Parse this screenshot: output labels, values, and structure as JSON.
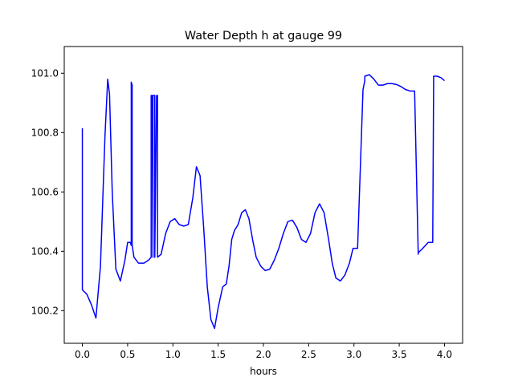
{
  "chart_data": {
    "type": "line",
    "title": "Water Depth h at gauge 99",
    "xlabel": "hours",
    "ylabel": "",
    "xlim": [
      -0.2,
      4.2
    ],
    "ylim": [
      100.09,
      101.09
    ],
    "xticks": [
      0.0,
      0.5,
      1.0,
      1.5,
      2.0,
      2.5,
      3.0,
      3.5,
      4.0
    ],
    "xtick_labels": [
      "0.0",
      "0.5",
      "1.0",
      "1.5",
      "2.0",
      "2.5",
      "3.0",
      "3.5",
      "4.0"
    ],
    "yticks": [
      100.2,
      100.4,
      100.6,
      100.8,
      101.0
    ],
    "ytick_labels": [
      "100.2",
      "100.4",
      "100.6",
      "100.8",
      "101.0"
    ],
    "grid": false,
    "series": [
      {
        "color": "#0000ff",
        "x": [
          0.0,
          0.0,
          0.05,
          0.1,
          0.15,
          0.2,
          0.25,
          0.28,
          0.3,
          0.33,
          0.37,
          0.42,
          0.47,
          0.5,
          0.53,
          0.54,
          0.54,
          0.55,
          0.55,
          0.57,
          0.62,
          0.68,
          0.73,
          0.76,
          0.76,
          0.77,
          0.78,
          0.78,
          0.8,
          0.8,
          0.82,
          0.83,
          0.83,
          0.87,
          0.92,
          0.97,
          1.02,
          1.07,
          1.12,
          1.17,
          1.22,
          1.26,
          1.3,
          1.34,
          1.38,
          1.42,
          1.46,
          1.5,
          1.55,
          1.59,
          1.62,
          1.65,
          1.68,
          1.72,
          1.76,
          1.8,
          1.84,
          1.88,
          1.92,
          1.97,
          2.02,
          2.07,
          2.12,
          2.17,
          2.22,
          2.27,
          2.32,
          2.37,
          2.42,
          2.47,
          2.52,
          2.57,
          2.62,
          2.67,
          2.72,
          2.76,
          2.8,
          2.85,
          2.9,
          2.95,
          2.99,
          3.04,
          3.1,
          3.12,
          3.12,
          3.17,
          3.22,
          3.27,
          3.32,
          3.37,
          3.42,
          3.47,
          3.52,
          3.57,
          3.62,
          3.67,
          3.71,
          3.71,
          3.76,
          3.82,
          3.87,
          3.88,
          3.88,
          3.92,
          3.96,
          4.0
        ],
        "y": [
          100.815,
          100.27,
          100.255,
          100.22,
          100.175,
          100.35,
          100.79,
          100.98,
          100.93,
          100.6,
          100.34,
          100.3,
          100.37,
          100.43,
          100.43,
          100.42,
          100.97,
          100.96,
          100.42,
          100.38,
          100.36,
          100.36,
          100.37,
          100.38,
          100.925,
          100.925,
          100.38,
          100.925,
          100.925,
          100.38,
          100.925,
          100.925,
          100.38,
          100.39,
          100.46,
          100.5,
          100.51,
          100.49,
          100.485,
          100.49,
          100.58,
          100.685,
          100.655,
          100.48,
          100.28,
          100.17,
          100.14,
          100.21,
          100.28,
          100.29,
          100.35,
          100.44,
          100.47,
          100.49,
          100.53,
          100.54,
          100.51,
          100.44,
          100.38,
          100.35,
          100.335,
          100.34,
          100.37,
          100.41,
          100.46,
          100.5,
          100.505,
          100.48,
          100.44,
          100.43,
          100.46,
          100.53,
          100.56,
          100.53,
          100.44,
          100.36,
          100.31,
          100.3,
          100.32,
          100.36,
          100.41,
          100.41,
          100.945,
          100.975,
          100.99,
          100.995,
          100.98,
          100.96,
          100.96,
          100.965,
          100.965,
          100.962,
          100.955,
          100.945,
          100.94,
          100.94,
          100.39,
          100.395,
          100.41,
          100.43,
          100.43,
          100.98,
          100.99,
          100.99,
          100.985,
          100.975
        ]
      }
    ]
  }
}
